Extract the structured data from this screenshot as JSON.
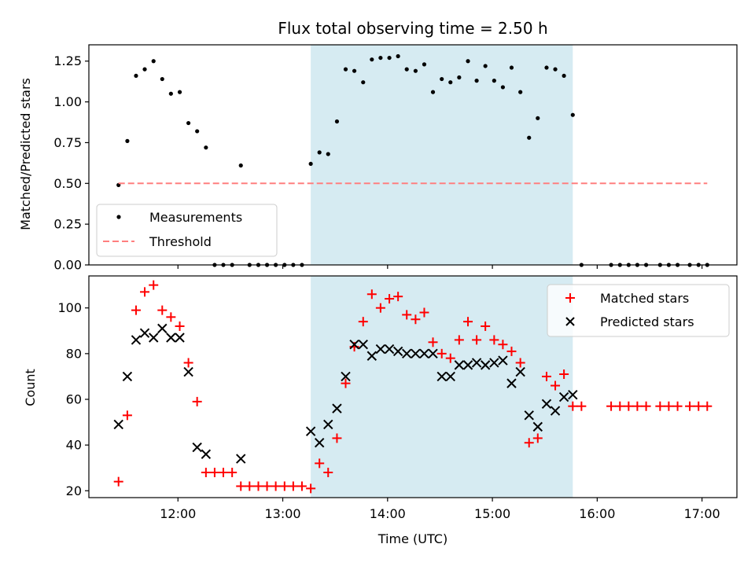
{
  "chart_data": [
    {
      "type": "scatter",
      "title": "Flux total observing time = 2.50 h",
      "xlabel": "",
      "ylabel": "Matched/Predicted stars",
      "ylim": [
        0,
        1.35
      ],
      "xlim": [
        11.15,
        17.333
      ],
      "x_unit": "hours UTC",
      "yticks": [
        0.0,
        0.25,
        0.5,
        0.75,
        1.0,
        1.25
      ],
      "ytick_labels": [
        "0.00",
        "0.25",
        "0.50",
        "0.75",
        "1.00",
        "1.25"
      ],
      "shaded_x_range": [
        13.267,
        15.767
      ],
      "shaded_color": "#add8e6",
      "legend": {
        "position": "lower-left",
        "entries": [
          "Measurements",
          "Threshold"
        ]
      },
      "series": [
        {
          "name": "Measurements",
          "style": "dot",
          "color": "#000000",
          "x": [
            11.433,
            11.517,
            11.6,
            11.683,
            11.767,
            11.85,
            11.933,
            12.017,
            12.1,
            12.183,
            12.267,
            12.35,
            12.433,
            12.517,
            12.6,
            12.683,
            12.767,
            12.85,
            12.933,
            13.017,
            13.1,
            13.183,
            13.267,
            13.35,
            13.433,
            13.517,
            13.6,
            13.683,
            13.767,
            13.85,
            13.933,
            14.017,
            14.1,
            14.183,
            14.267,
            14.35,
            14.433,
            14.517,
            14.6,
            14.683,
            14.767,
            14.85,
            14.933,
            15.017,
            15.1,
            15.183,
            15.267,
            15.35,
            15.433,
            15.517,
            15.6,
            15.683,
            15.767,
            15.85,
            16.133,
            16.217,
            16.3,
            16.383,
            16.467,
            16.6,
            16.683,
            16.767,
            16.883,
            16.967,
            17.05
          ],
          "y": [
            0.49,
            0.76,
            1.16,
            1.2,
            1.25,
            1.14,
            1.05,
            1.06,
            0.87,
            0.82,
            0.72,
            0.0,
            0.0,
            0.0,
            0.61,
            0.0,
            0.0,
            0.0,
            0.0,
            0.0,
            0.0,
            0.0,
            0.62,
            0.69,
            0.68,
            0.88,
            1.2,
            1.19,
            1.12,
            1.26,
            1.27,
            1.27,
            1.28,
            1.2,
            1.19,
            1.23,
            1.06,
            1.14,
            1.12,
            1.15,
            1.25,
            1.13,
            1.22,
            1.13,
            1.09,
            1.21,
            1.06,
            0.78,
            0.9,
            1.21,
            1.2,
            1.16,
            0.92,
            0.0,
            0.0,
            0.0,
            0.0,
            0.0,
            0.0,
            0.0,
            0.0,
            0.0,
            0.0,
            0.0,
            0.0
          ]
        },
        {
          "name": "Threshold",
          "style": "dashed-line",
          "color": "#ff7f7f",
          "x": [
            11.433,
            17.05
          ],
          "y": [
            0.5,
            0.5
          ]
        }
      ]
    },
    {
      "type": "scatter",
      "title": "",
      "xlabel": "Time (UTC)",
      "ylabel": "Count",
      "ylim": [
        17,
        114
      ],
      "xlim": [
        11.15,
        17.333
      ],
      "x_unit": "hours UTC",
      "xticks": [
        12,
        13,
        14,
        15,
        16,
        17
      ],
      "xtick_labels": [
        "12:00",
        "13:00",
        "14:00",
        "15:00",
        "16:00",
        "17:00"
      ],
      "yticks": [
        20,
        40,
        60,
        80,
        100
      ],
      "ytick_labels": [
        "20",
        "40",
        "60",
        "80",
        "100"
      ],
      "shaded_x_range": [
        13.267,
        15.767
      ],
      "shaded_color": "#add8e6",
      "legend": {
        "position": "top-right",
        "entries": [
          "Matched stars",
          "Predicted stars"
        ]
      },
      "series": [
        {
          "name": "Matched stars",
          "marker": "plus",
          "color": "#ff0000",
          "x": [
            11.433,
            11.517,
            11.6,
            11.683,
            11.767,
            11.85,
            11.933,
            12.017,
            12.1,
            12.183,
            12.267,
            12.35,
            12.433,
            12.517,
            12.6,
            12.683,
            12.767,
            12.85,
            12.933,
            13.017,
            13.1,
            13.183,
            13.267,
            13.35,
            13.433,
            13.517,
            13.6,
            13.683,
            13.767,
            13.85,
            13.933,
            14.017,
            14.1,
            14.183,
            14.267,
            14.35,
            14.433,
            14.517,
            14.6,
            14.683,
            14.767,
            14.85,
            14.933,
            15.017,
            15.1,
            15.183,
            15.267,
            15.35,
            15.433,
            15.517,
            15.6,
            15.683,
            15.767,
            15.85,
            16.133,
            16.217,
            16.3,
            16.383,
            16.467,
            16.6,
            16.683,
            16.767,
            16.883,
            16.967,
            17.05
          ],
          "y": [
            24,
            53,
            99,
            107,
            110,
            99,
            96,
            92,
            76,
            59,
            28,
            28,
            28,
            28,
            22,
            22,
            22,
            22,
            22,
            22,
            22,
            22,
            21,
            32,
            28,
            43,
            67,
            83,
            94,
            106,
            100,
            104,
            105,
            97,
            95,
            98,
            85,
            80,
            78,
            86,
            94,
            86,
            92,
            86,
            84,
            81,
            76,
            41,
            43,
            70,
            66,
            71,
            57,
            57,
            57,
            57,
            57,
            57,
            57,
            57,
            57,
            57,
            57,
            57,
            57
          ]
        },
        {
          "name": "Predicted stars",
          "marker": "x",
          "color": "#000000",
          "x": [
            11.433,
            11.517,
            11.6,
            11.683,
            11.767,
            11.85,
            11.933,
            12.017,
            12.1,
            12.183,
            12.267,
            12.6,
            13.267,
            13.35,
            13.433,
            13.517,
            13.6,
            13.683,
            13.767,
            13.85,
            13.933,
            14.017,
            14.1,
            14.183,
            14.267,
            14.35,
            14.433,
            14.517,
            14.6,
            14.683,
            14.767,
            14.85,
            14.933,
            15.017,
            15.1,
            15.183,
            15.267,
            15.35,
            15.433,
            15.517,
            15.6,
            15.683,
            15.767
          ],
          "y": [
            49,
            70,
            86,
            89,
            87,
            91,
            87,
            87,
            72,
            39,
            36,
            34,
            46,
            41,
            49,
            56,
            70,
            84,
            84,
            79,
            82,
            82,
            81,
            80,
            80,
            80,
            80,
            70,
            70,
            75,
            75,
            76,
            75,
            76,
            77,
            67,
            72,
            53,
            48,
            58,
            55,
            61,
            62
          ]
        }
      ]
    }
  ]
}
